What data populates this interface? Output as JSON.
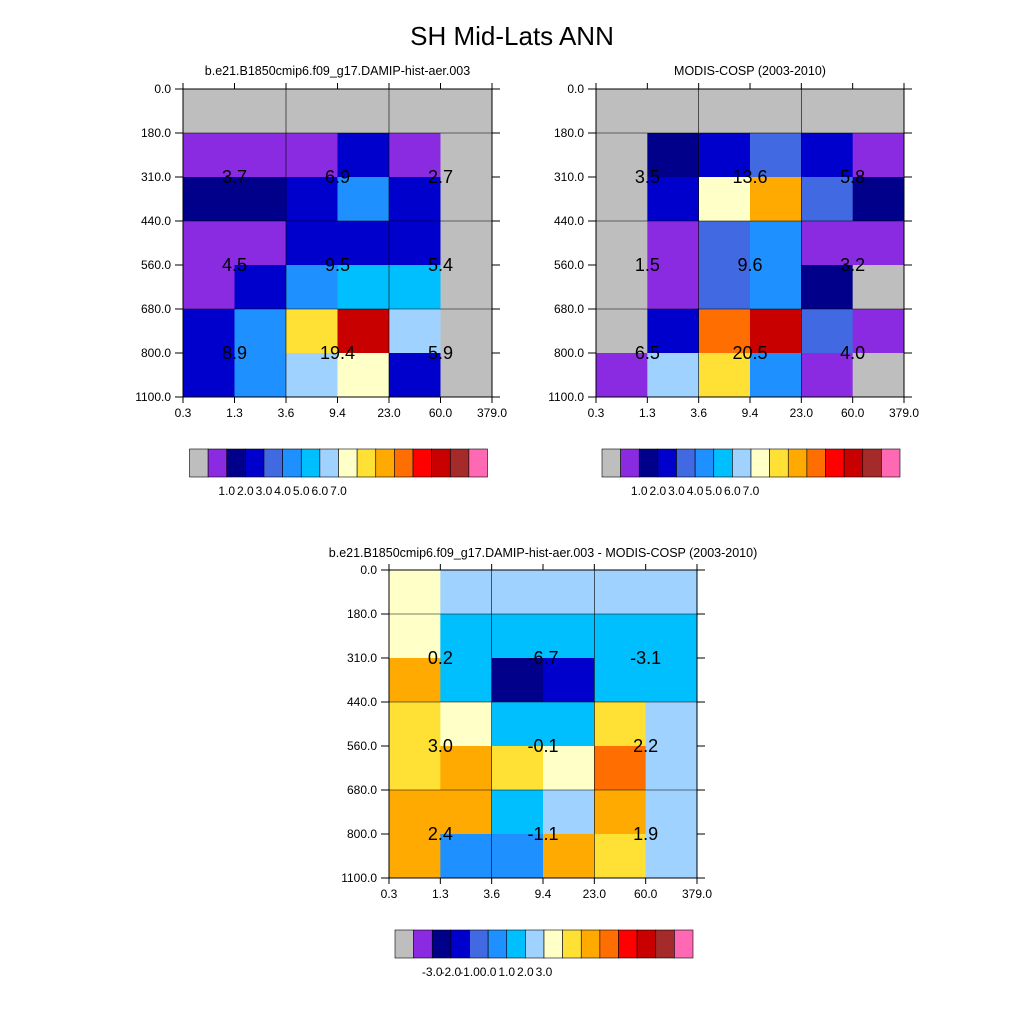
{
  "page": {
    "title": "SH Mid-Lats ANN"
  },
  "colors": {
    "missing": "#bebebe",
    "abs_scale": [
      "#bebebe",
      "#8a2be2",
      "#00008b",
      "#0000cd",
      "#4169e1",
      "#1e90ff",
      "#00bfff",
      "#a0d2ff",
      "#ffffc8",
      "#ffe135",
      "#ffaa00",
      "#ff6e00",
      "#ff0000",
      "#c80000",
      "#a52a2a",
      "#ff69b4"
    ],
    "diff_scale": [
      "#bebebe",
      "#8a2be2",
      "#00008b",
      "#0000cd",
      "#4169e1",
      "#1e90ff",
      "#00bfff",
      "#a0d2ff",
      "#ffffc8",
      "#ffe135",
      "#ffaa00",
      "#ff6e00",
      "#ff0000",
      "#c80000",
      "#a52a2a",
      "#ff69b4"
    ]
  },
  "chart_data": [
    {
      "type": "heatmap",
      "title": "b.e21.B1850cmip6.f09_g17.DAMIP-hist-aer.003",
      "x_ticks": [
        "0.3",
        "1.3",
        "3.6",
        "9.4",
        "23.0",
        "60.0",
        "379.0"
      ],
      "y_ticks": [
        "0.0",
        "180.0",
        "310.0",
        "440.0",
        "560.0",
        "680.0",
        "800.0",
        "1100.0"
      ],
      "cells": [
        [
          "missing",
          "missing",
          "missing",
          "missing",
          "missing",
          "missing"
        ],
        [
          "purple",
          "purple",
          "purple",
          "blue",
          "purple",
          "missing"
        ],
        [
          "navy",
          "navy",
          "blue",
          "dodger",
          "blue",
          "missing"
        ],
        [
          "purple",
          "purple",
          "blue",
          "blue",
          "blue",
          "missing"
        ],
        [
          "purple",
          "blue",
          "dodger",
          "deepsky",
          "deepsky",
          "missing"
        ],
        [
          "blue",
          "dodger",
          "yellow",
          "darkred",
          "lightblue",
          "missing"
        ],
        [
          "blue",
          "dodger",
          "lightblue",
          "cream",
          "blue",
          "missing"
        ]
      ],
      "block_labels": [
        {
          "row": 1,
          "col": 0,
          "value": "3.7"
        },
        {
          "row": 1,
          "col": 1,
          "value": "6.9"
        },
        {
          "row": 1,
          "col": 2,
          "value": "2.7"
        },
        {
          "row": 2,
          "col": 0,
          "value": "4.5"
        },
        {
          "row": 2,
          "col": 1,
          "value": "9.5"
        },
        {
          "row": 2,
          "col": 2,
          "value": "5.4"
        },
        {
          "row": 3,
          "col": 0,
          "value": "8.9"
        },
        {
          "row": 3,
          "col": 1,
          "value": "19.4"
        },
        {
          "row": 3,
          "col": 2,
          "value": "5.9"
        }
      ],
      "colorbar_labels": [
        "1.0",
        "2.0",
        "3.0",
        "4.0",
        "5.0",
        "6.0",
        "7.0"
      ]
    },
    {
      "type": "heatmap",
      "title": "MODIS-COSP (2003-2010)",
      "x_ticks": [
        "0.3",
        "1.3",
        "3.6",
        "9.4",
        "23.0",
        "60.0",
        "379.0"
      ],
      "y_ticks": [
        "0.0",
        "180.0",
        "310.0",
        "440.0",
        "560.0",
        "680.0",
        "800.0",
        "1100.0"
      ],
      "cells": [
        [
          "missing",
          "missing",
          "missing",
          "missing",
          "missing",
          "missing"
        ],
        [
          "missing",
          "navy",
          "blue",
          "royal",
          "blue",
          "purple"
        ],
        [
          "missing",
          "blue",
          "cream",
          "orange",
          "royal",
          "navy"
        ],
        [
          "missing",
          "purple",
          "royal",
          "dodger",
          "purple",
          "purple"
        ],
        [
          "missing",
          "purple",
          "royal",
          "dodger",
          "navy",
          "missing"
        ],
        [
          "missing",
          "blue",
          "darkorange",
          "darkred",
          "royal",
          "purple"
        ],
        [
          "purple",
          "lightblue",
          "yellow",
          "dodger",
          "purple",
          "missing"
        ]
      ],
      "block_labels": [
        {
          "row": 1,
          "col": 0,
          "value": "3.5"
        },
        {
          "row": 1,
          "col": 1,
          "value": "13.6"
        },
        {
          "row": 1,
          "col": 2,
          "value": "5.8"
        },
        {
          "row": 2,
          "col": 0,
          "value": "1.5"
        },
        {
          "row": 2,
          "col": 1,
          "value": "9.6"
        },
        {
          "row": 2,
          "col": 2,
          "value": "3.2"
        },
        {
          "row": 3,
          "col": 0,
          "value": "6.5"
        },
        {
          "row": 3,
          "col": 1,
          "value": "20.5"
        },
        {
          "row": 3,
          "col": 2,
          "value": "4.0"
        }
      ],
      "colorbar_labels": [
        "1.0",
        "2.0",
        "3.0",
        "4.0",
        "5.0",
        "6.0",
        "7.0"
      ]
    },
    {
      "type": "heatmap",
      "title": "b.e21.B1850cmip6.f09_g17.DAMIP-hist-aer.003 - MODIS-COSP (2003-2010)",
      "x_ticks": [
        "0.3",
        "1.3",
        "3.6",
        "9.4",
        "23.0",
        "60.0",
        "379.0"
      ],
      "y_ticks": [
        "0.0",
        "180.0",
        "310.0",
        "440.0",
        "560.0",
        "680.0",
        "800.0",
        "1100.0"
      ],
      "cells": [
        [
          "cream",
          "lightblue",
          "lightblue",
          "lightblue",
          "lightblue",
          "lightblue"
        ],
        [
          "cream",
          "deepsky",
          "deepsky",
          "deepsky",
          "deepsky",
          "deepsky"
        ],
        [
          "orange",
          "deepsky",
          "navy",
          "blue",
          "deepsky",
          "deepsky"
        ],
        [
          "yellow",
          "cream",
          "deepsky",
          "deepsky",
          "yellow",
          "lightblue"
        ],
        [
          "yellow",
          "orange",
          "yellow",
          "cream",
          "darkorange",
          "lightblue"
        ],
        [
          "orange",
          "orange",
          "deepsky",
          "lightblue",
          "orange",
          "lightblue"
        ],
        [
          "orange",
          "dodger",
          "dodger",
          "orange",
          "yellow",
          "lightblue"
        ]
      ],
      "block_labels": [
        {
          "row": 1,
          "col": 0,
          "value": "0.2"
        },
        {
          "row": 1,
          "col": 1,
          "value": "-6.7"
        },
        {
          "row": 1,
          "col": 2,
          "value": "-3.1"
        },
        {
          "row": 2,
          "col": 0,
          "value": "3.0"
        },
        {
          "row": 2,
          "col": 1,
          "value": "-0.1"
        },
        {
          "row": 2,
          "col": 2,
          "value": "2.2"
        },
        {
          "row": 3,
          "col": 0,
          "value": "2.4"
        },
        {
          "row": 3,
          "col": 1,
          "value": "-1.1"
        },
        {
          "row": 3,
          "col": 2,
          "value": "1.9"
        }
      ],
      "colorbar_labels": [
        "-3.0",
        "-2.0",
        "-1.0",
        "0.0",
        "1.0",
        "2.0",
        "3.0"
      ]
    }
  ]
}
